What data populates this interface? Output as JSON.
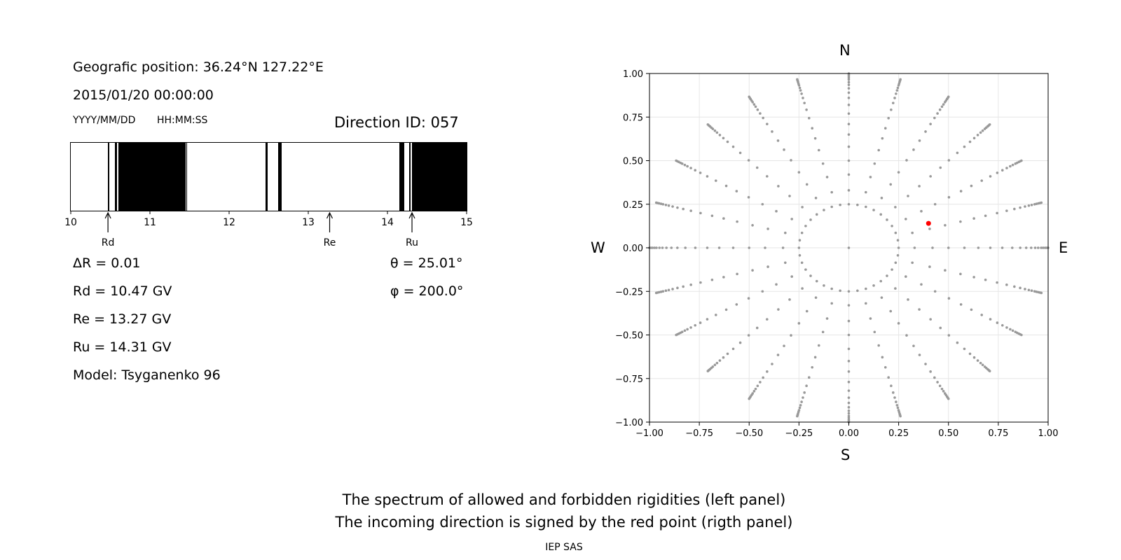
{
  "header": {
    "position": "Geografic position: 36.24°N 127.22°E",
    "datetime": "2015/01/20 00:00:00",
    "date_format": "YYYY/MM/DD",
    "time_format": "HH:MM:SS",
    "direction": "Direction ID: 057"
  },
  "spectrum": {
    "xlim": [
      10,
      15
    ],
    "ticks": [
      "10",
      "11",
      "12",
      "13",
      "14",
      "15"
    ],
    "tick_values": [
      10,
      11,
      12,
      13,
      14,
      15
    ],
    "forbidden_bands": [
      [
        10.47,
        10.49
      ],
      [
        10.56,
        10.58
      ],
      [
        10.6,
        11.45
      ],
      [
        11.46,
        11.47
      ],
      [
        12.46,
        12.49
      ],
      [
        12.62,
        12.66
      ],
      [
        14.15,
        14.21
      ],
      [
        14.27,
        14.29
      ],
      [
        14.31,
        15.0
      ]
    ],
    "markers": [
      {
        "label": "Rd",
        "value": 10.47
      },
      {
        "label": "Re",
        "value": 13.27
      },
      {
        "label": "Ru",
        "value": 14.31
      }
    ]
  },
  "stats": {
    "delta_r": "ΔR = 0.01",
    "rd": "Rd = 10.47 GV",
    "re": "Re = 13.27 GV",
    "ru": "Ru = 14.31 GV",
    "model": "Model: Tsyganenko 96",
    "theta": "θ = 25.01°",
    "phi": "φ = 200.0°"
  },
  "chart_data": {
    "type": "scatter",
    "xlim": [
      -1,
      1
    ],
    "ylim": [
      -1,
      1
    ],
    "xticks": [
      "−1.00",
      "−0.75",
      "−0.50",
      "−0.25",
      "0.00",
      "0.25",
      "0.50",
      "0.75",
      "1.00"
    ],
    "yticks": [
      "1.00",
      "0.75",
      "0.50",
      "0.25",
      "0.00",
      "−0.25",
      "−0.50",
      "−0.75",
      "−1.00"
    ],
    "tick_values": [
      -1,
      -0.75,
      -0.5,
      -0.25,
      0,
      0.25,
      0.5,
      0.75,
      1
    ],
    "grid": true,
    "compass": {
      "north": "N",
      "south": "S",
      "west": "W",
      "east": "E"
    },
    "grid_points": {
      "rings": [
        0.25,
        0.33,
        0.42,
        0.5,
        0.58,
        0.65,
        0.71,
        0.77,
        0.82,
        0.86,
        0.89,
        0.915,
        0.935,
        0.95,
        0.965,
        0.975,
        0.985,
        0.993,
        1.0
      ],
      "azimuth_step_deg": 15,
      "inner_ring_radius": 0.25,
      "inner_ring_points": 36
    },
    "highlight": {
      "x": 0.4,
      "y": 0.14,
      "color": "#ff0000"
    },
    "point_color": "#999999"
  },
  "footer": {
    "line1": "The spectrum of allowed and forbidden rigidities (left panel)",
    "line2": "The incoming direction is signed by the red point (rigth panel)",
    "credit": "IEP SAS"
  }
}
